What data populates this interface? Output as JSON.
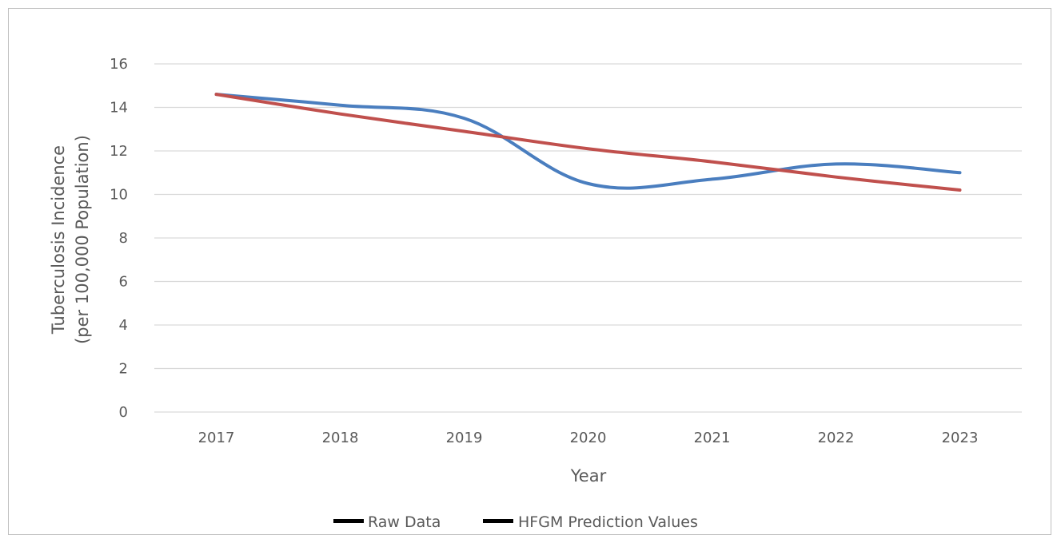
{
  "chart_data": {
    "type": "line",
    "title": "",
    "xlabel": "Year",
    "ylabel_line1": "Tuberculosis Incidence",
    "ylabel_line2": "(per 100,000 Population)",
    "categories": [
      "2017",
      "2018",
      "2019",
      "2020",
      "2021",
      "2022",
      "2023"
    ],
    "y_ticks": [
      0,
      2,
      4,
      6,
      8,
      10,
      12,
      14,
      16
    ],
    "ylim": [
      0,
      16
    ],
    "grid": true,
    "legend_position": "bottom",
    "series": [
      {
        "name": "Raw Data",
        "values": [
          14.6,
          14.1,
          13.5,
          10.5,
          10.7,
          11.4,
          11.0
        ],
        "color": "#4a7ebf"
      },
      {
        "name": "HFGM Prediction Values",
        "values": [
          14.6,
          13.7,
          12.9,
          12.1,
          11.5,
          10.8,
          10.2
        ],
        "color": "#c0504d"
      }
    ],
    "legend_swatch_color": "#000000"
  }
}
